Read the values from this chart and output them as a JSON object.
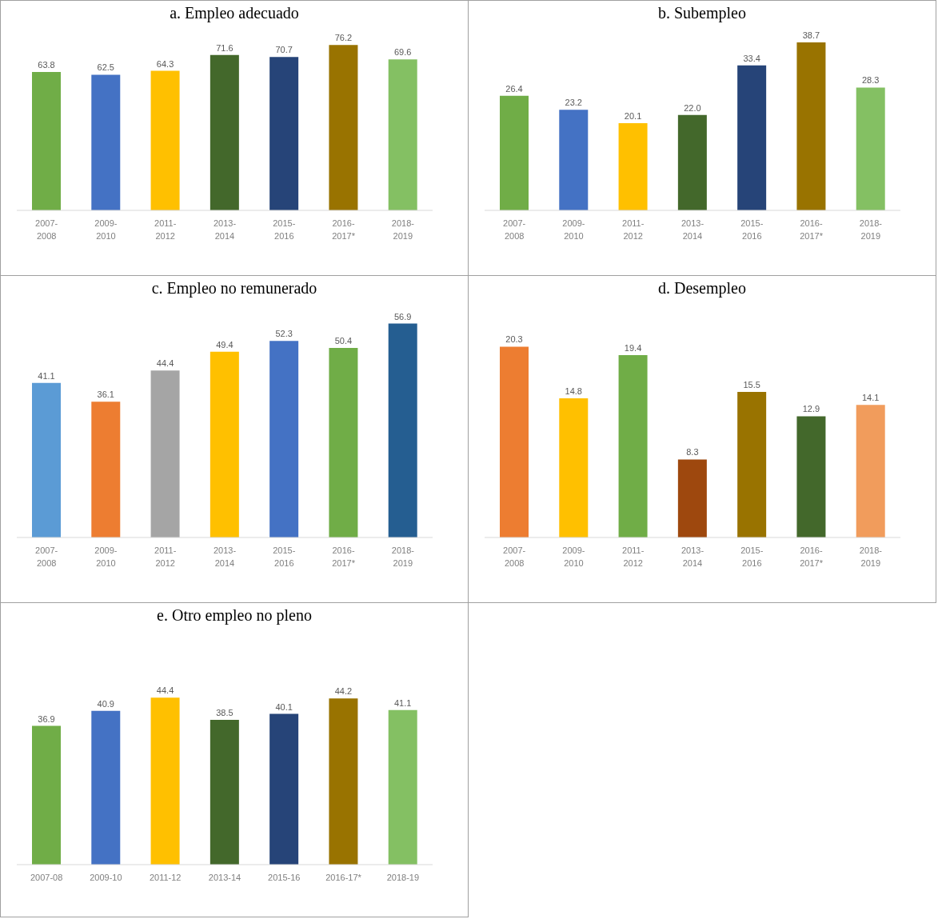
{
  "chart_data": [
    {
      "type": "bar",
      "title": "a. Empleo adecuado",
      "categories": [
        "2007-2008",
        "2009-2010",
        "2011-2012",
        "2013-2014",
        "2015-2016",
        "2016-2017*",
        "2018-2019"
      ],
      "values": [
        63.8,
        62.5,
        64.3,
        71.6,
        70.7,
        76.2,
        69.6
      ],
      "value_labels": [
        "63.8",
        "62.5",
        "64.3",
        "71.6",
        "70.7",
        "76.2",
        "69.6"
      ],
      "colors": [
        "#70ad47",
        "#4472c4",
        "#ffc000",
        "#43682b",
        "#264478",
        "#997300",
        "#84c063"
      ],
      "legend": false
    },
    {
      "type": "bar",
      "title": "b. Subempleo",
      "categories": [
        "2007-2008",
        "2009-2010",
        "2011-2012",
        "2013-2014",
        "2015-2016",
        "2016-2017*",
        "2018-2019"
      ],
      "values": [
        26.4,
        23.2,
        20.1,
        22.0,
        33.4,
        38.7,
        28.3
      ],
      "value_labels": [
        "26.4",
        "23.2",
        "20.1",
        "22.0",
        "33.4",
        "38.7",
        "28.3"
      ],
      "colors": [
        "#70ad47",
        "#4472c4",
        "#ffc000",
        "#43682b",
        "#264478",
        "#997300",
        "#84c063"
      ],
      "legend": false
    },
    {
      "type": "bar",
      "title": "c. Empleo no remunerado",
      "categories": [
        "2007-2008",
        "2009-2010",
        "2011-2012",
        "2013-2014",
        "2015-2016",
        "2016-2017*",
        "2018-2019"
      ],
      "values": [
        41.1,
        36.1,
        44.4,
        49.4,
        52.3,
        50.4,
        56.9
      ],
      "value_labels": [
        "41.1",
        "36.1",
        "44.4",
        "49.4",
        "52.3",
        "50.4",
        "56.9"
      ],
      "colors": [
        "#5b9bd5",
        "#ed7d31",
        "#a5a5a5",
        "#ffc000",
        "#4472c4",
        "#70ad47",
        "#255e91"
      ],
      "legend": false
    },
    {
      "type": "bar",
      "title": "d. Desempleo",
      "categories": [
        "2007-2008",
        "2009-2010",
        "2011-2012",
        "2013-2014",
        "2015-2016",
        "2016-2017*",
        "2018-2019"
      ],
      "values": [
        20.3,
        14.8,
        19.4,
        8.3,
        15.5,
        12.9,
        14.1
      ],
      "value_labels": [
        "20.3",
        "14.8",
        "19.4",
        "8.3",
        "15.5",
        "12.9",
        "14.1"
      ],
      "colors": [
        "#ed7d31",
        "#ffc000",
        "#70ad47",
        "#9e480e",
        "#997300",
        "#43682b",
        "#f19c5c"
      ],
      "legend": false
    },
    {
      "type": "bar",
      "title": "e. Otro empleo no pleno",
      "categories": [
        "2007-08",
        "2009-10",
        "2011-12",
        "2013-14",
        "2015-16",
        "2016-17*",
        "2018-19"
      ],
      "values": [
        36.9,
        40.9,
        44.4,
        38.5,
        40.1,
        44.2,
        41.1
      ],
      "value_labels": [
        "36.9",
        "40.9",
        "44.4",
        "38.5",
        "40.1",
        "44.2",
        "41.1"
      ],
      "colors": [
        "#70ad47",
        "#4472c4",
        "#ffc000",
        "#43682b",
        "#264478",
        "#997300",
        "#84c063"
      ],
      "legend": false
    }
  ]
}
